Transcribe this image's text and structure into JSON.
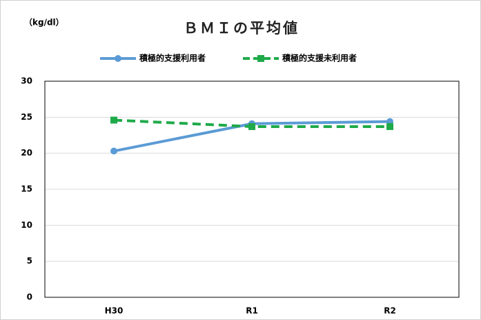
{
  "chart_data": {
    "type": "line",
    "title": "ＢＭＩの平均値",
    "unit_label": "（kg/dl）",
    "categories": [
      "H30",
      "R1",
      "R2"
    ],
    "series": [
      {
        "name": "積極的支援利用者",
        "color": "#5b9bd5",
        "marker": "circle",
        "dash": "solid",
        "values": [
          20.3,
          24.1,
          24.4
        ]
      },
      {
        "name": "積極的支援未利用者",
        "color": "#1faa4a",
        "marker": "square",
        "dash": "dashed",
        "values": [
          24.6,
          23.7,
          23.7
        ]
      }
    ],
    "ylim": [
      0,
      30
    ],
    "yticks": [
      0,
      5,
      10,
      15,
      20,
      25,
      30
    ],
    "grid": true,
    "legend": "top"
  }
}
